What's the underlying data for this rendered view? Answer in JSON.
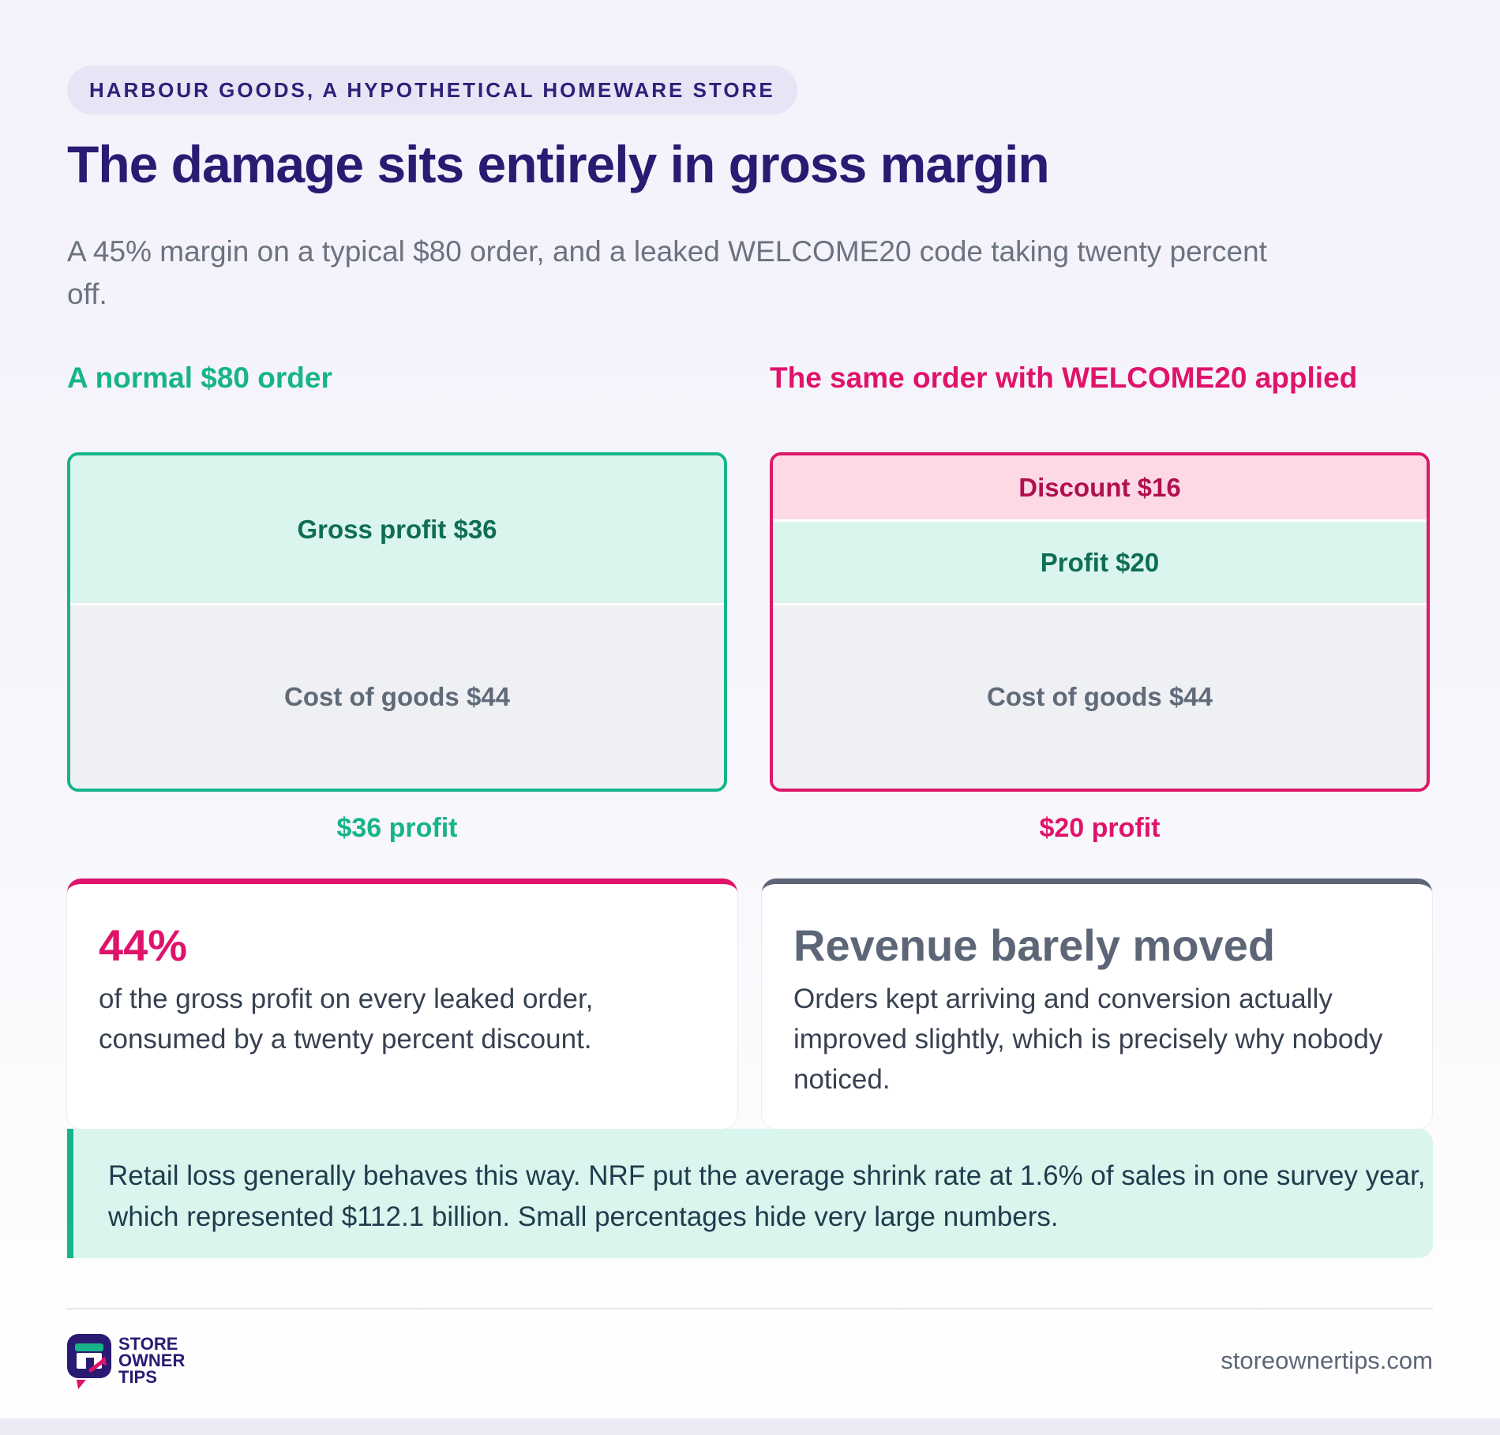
{
  "header": {
    "eyebrow": "HARBOUR GOODS, A HYPOTHETICAL HOMEWARE STORE",
    "title": "The damage sits entirely in gross margin",
    "subtitle": "A 45% margin on a typical $80 order, and a leaked WELCOME20 code taking twenty percent off."
  },
  "comparison": {
    "normal": {
      "heading": "A normal $80 order",
      "gross_profit_label": "Gross profit $36",
      "cost_label": "Cost of goods $44",
      "profit_caption": "$36 profit"
    },
    "discounted": {
      "heading": "The same order with WELCOME20 applied",
      "discount_label": "Discount $16",
      "profit_label": "Profit $20",
      "cost_label": "Cost of goods $44",
      "profit_caption": "$20 profit"
    }
  },
  "chart_data": {
    "type": "bar",
    "stacked": true,
    "categories": [
      "A normal $80 order",
      "The same order with WELCOME20 applied"
    ],
    "series": [
      {
        "name": "Cost of goods",
        "values": [
          44,
          44
        ]
      },
      {
        "name": "Gross profit",
        "values": [
          36,
          20
        ]
      },
      {
        "name": "Discount",
        "values": [
          0,
          16
        ]
      }
    ],
    "ylim": [
      0,
      80
    ]
  },
  "cards": {
    "stat": {
      "number": "44%",
      "text": "of the gross profit on every leaked order, consumed by a twenty percent discount."
    },
    "revenue": {
      "heading": "Revenue barely moved",
      "text": "Orders kept arriving and conversion actually improved slightly, which is precisely why nobody noticed."
    }
  },
  "note": {
    "text": "Retail loss generally behaves this way. NRF put the average shrink rate at 1.6% of sales in one survey year, which represented $112.1 billion. Small percentages hide very large numbers."
  },
  "footer": {
    "logo_lines": [
      "STORE",
      "OWNER",
      "TIPS"
    ],
    "site": "storeownertips.com"
  },
  "colors": {
    "navy": "#2b1a72",
    "green": "#16b48a",
    "pink": "#e0136b",
    "slate": "#5d6677"
  }
}
